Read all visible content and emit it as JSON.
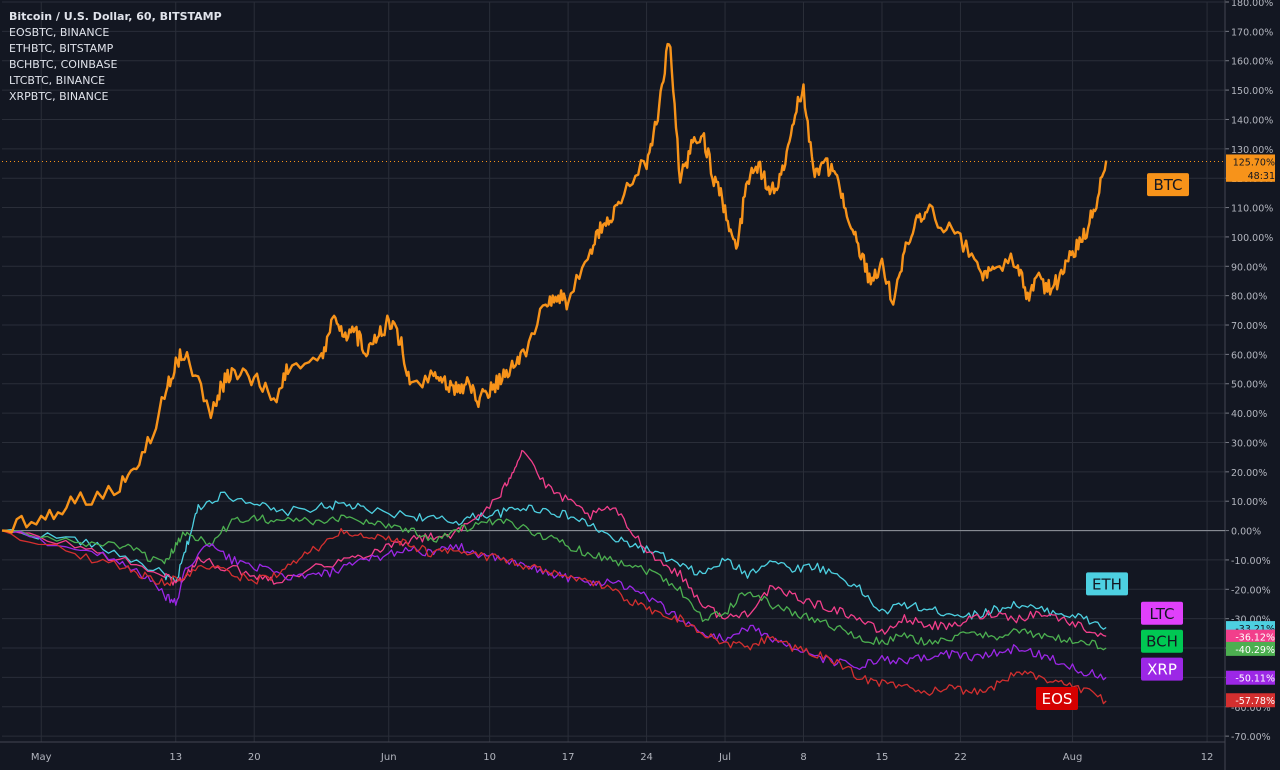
{
  "legend": {
    "main_symbol": "Bitcoin / U.S. Dollar, 60, BITSTAMP",
    "compare": [
      "EOSBTC, BINANCE",
      "ETHBTC, BITSTAMP",
      "BCHBTC, COINBASE",
      "LTCBTC, BINANCE",
      "XRPBTC, BINANCE"
    ]
  },
  "chart_data": {
    "type": "line",
    "y_unit": "%",
    "ylim": [
      -72,
      180
    ],
    "y_ticks": [
      "180.00%",
      "170.00%",
      "160.00%",
      "150.00%",
      "140.00%",
      "130.00%",
      "120.00%",
      "110.00%",
      "100.00%",
      "90.00%",
      "80.00%",
      "70.00%",
      "60.00%",
      "50.00%",
      "40.00%",
      "30.00%",
      "20.00%",
      "10.00%",
      "0.00%",
      "-10.00%",
      "-20.00%",
      "-30.00%",
      "-40.00%",
      "-50.00%",
      "-60.00%",
      "-70.00%"
    ],
    "x_ticks": [
      "May",
      "13",
      "20",
      "Jun",
      "10",
      "17",
      "24",
      "Jul",
      "8",
      "15",
      "22",
      "Aug",
      "12"
    ],
    "x_tick_days": [
      1,
      13,
      20,
      32,
      41,
      48,
      55,
      62,
      69,
      76,
      83,
      93,
      105
    ],
    "x_range_days": [
      -2.5,
      106.6
    ],
    "grid": true,
    "zero_line": true,
    "series": [
      {
        "name": "BTC",
        "color": "#f7931a",
        "last_label": "125.70%",
        "countdown": "48:31",
        "width": 2.4,
        "x": [
          -2.5,
          1,
          4,
          8,
          10,
          12,
          13,
          14,
          16,
          17,
          18,
          20,
          22,
          23,
          26,
          27,
          28,
          29,
          30,
          31,
          32,
          33,
          34,
          36,
          37,
          38,
          39,
          40,
          41,
          42,
          43,
          44,
          46,
          47,
          48,
          50,
          51,
          52,
          53,
          55,
          56,
          57,
          58,
          59,
          60,
          61,
          62,
          63,
          64,
          65,
          66,
          67,
          68,
          69,
          70,
          71,
          72,
          73,
          74,
          75,
          76,
          77,
          78,
          79,
          80,
          82,
          84,
          85,
          86,
          88,
          89,
          90,
          91,
          92,
          93,
          94,
          95,
          96
        ],
        "y": [
          0,
          5,
          10,
          15,
          25,
          45,
          58,
          60,
          40,
          48,
          55,
          52,
          45,
          55,
          58,
          72,
          65,
          68,
          60,
          65,
          72,
          65,
          48,
          52,
          50,
          48,
          50,
          45,
          48,
          52,
          55,
          60,
          78,
          80,
          78,
          95,
          103,
          108,
          115,
          126,
          140,
          168,
          120,
          130,
          135,
          120,
          110,
          95,
          120,
          125,
          115,
          120,
          140,
          150,
          120,
          125,
          120,
          105,
          95,
          85,
          90,
          78,
          95,
          105,
          110,
          102,
          95,
          88,
          90,
          92,
          80,
          85,
          82,
          86,
          95,
          100,
          110,
          126
        ],
        "box": "#f7931a",
        "box_text": "#131722"
      },
      {
        "name": "ETH",
        "color": "#4dd0e1",
        "last_label": "-33.21%",
        "width": 1.3,
        "x": [
          -2.5,
          4,
          8,
          12,
          13,
          14,
          15,
          17,
          20,
          22,
          26,
          28,
          30,
          34,
          36,
          38,
          40,
          42,
          44,
          46,
          48,
          50,
          52,
          54,
          56,
          58,
          60,
          62,
          64,
          66,
          68,
          70,
          72,
          74,
          76,
          78,
          80,
          82,
          84,
          86,
          88,
          90,
          92,
          94,
          96
        ],
        "y": [
          0,
          -3,
          -8,
          -15,
          -18,
          -5,
          8,
          12,
          10,
          6,
          8,
          9,
          7,
          5,
          4,
          3,
          5,
          6,
          8,
          7,
          5,
          2,
          -3,
          -5,
          -8,
          -12,
          -15,
          -10,
          -15,
          -10,
          -13,
          -12,
          -15,
          -20,
          -28,
          -25,
          -27,
          -28,
          -29,
          -27,
          -25,
          -27,
          -28,
          -30,
          -33
        ]
      },
      {
        "name": "LTC",
        "color": "#f23f8b",
        "last_label": "-36.12%",
        "width": 1.3,
        "x": [
          -2.5,
          4,
          8,
          12,
          13,
          14,
          15,
          17,
          20,
          22,
          26,
          28,
          30,
          32,
          34,
          36,
          38,
          40,
          42,
          43,
          44,
          46,
          48,
          50,
          52,
          54,
          56,
          58,
          60,
          62,
          64,
          66,
          68,
          70,
          72,
          74,
          76,
          78,
          80,
          82,
          84,
          86,
          88,
          90,
          92,
          94,
          96
        ],
        "y": [
          0,
          -5,
          -10,
          -15,
          -18,
          -15,
          -10,
          -12,
          -15,
          -17,
          -12,
          -10,
          -8,
          -5,
          -3,
          -2,
          -1,
          5,
          12,
          20,
          28,
          15,
          10,
          5,
          8,
          -2,
          -10,
          -15,
          -25,
          -30,
          -28,
          -20,
          -22,
          -25,
          -27,
          -30,
          -35,
          -30,
          -32,
          -33,
          -30,
          -28,
          -30,
          -28,
          -30,
          -33,
          -36
        ]
      },
      {
        "name": "BCH",
        "color": "#4caf50",
        "last_label": "-40.29%",
        "width": 1.3,
        "x": [
          -2.5,
          4,
          8,
          10,
          12,
          13,
          14,
          16,
          18,
          20,
          22,
          24,
          26,
          28,
          30,
          32,
          34,
          36,
          38,
          40,
          42,
          44,
          46,
          48,
          50,
          52,
          54,
          56,
          58,
          60,
          62,
          64,
          66,
          68,
          70,
          72,
          74,
          76,
          78,
          80,
          82,
          84,
          86,
          88,
          90,
          92,
          94,
          96
        ],
        "y": [
          0,
          -4,
          -5,
          -8,
          -12,
          -5,
          0,
          -5,
          3,
          5,
          3,
          4,
          2,
          5,
          3,
          2,
          0,
          -3,
          0,
          2,
          3,
          1,
          -2,
          -5,
          -8,
          -10,
          -12,
          -15,
          -20,
          -30,
          -28,
          -20,
          -25,
          -28,
          -30,
          -33,
          -37,
          -38,
          -36,
          -38,
          -37,
          -35,
          -36,
          -34,
          -36,
          -37,
          -38,
          -40
        ]
      },
      {
        "name": "XRP",
        "color": "#9c27e6",
        "last_label": "-50.11%",
        "width": 1.3,
        "x": [
          -2.5,
          4,
          8,
          10,
          12,
          13,
          14,
          16,
          18,
          20,
          22,
          24,
          26,
          28,
          30,
          32,
          34,
          36,
          38,
          40,
          42,
          44,
          46,
          48,
          50,
          52,
          54,
          56,
          58,
          60,
          62,
          64,
          66,
          68,
          70,
          72,
          74,
          76,
          78,
          80,
          82,
          84,
          86,
          88,
          90,
          92,
          94,
          96
        ],
        "y": [
          0,
          -6,
          -10,
          -15,
          -22,
          -25,
          -12,
          -5,
          -10,
          -12,
          -15,
          -16,
          -15,
          -13,
          -10,
          -8,
          -6,
          -8,
          -5,
          -8,
          -10,
          -12,
          -14,
          -16,
          -18,
          -17,
          -20,
          -25,
          -30,
          -35,
          -37,
          -33,
          -36,
          -40,
          -43,
          -45,
          -46,
          -44,
          -45,
          -43,
          -42,
          -43,
          -42,
          -40,
          -42,
          -45,
          -48,
          -50
        ]
      },
      {
        "name": "EOS",
        "color": "#d32f2f",
        "last_label": "-57.78%",
        "width": 1.3,
        "x": [
          -2.5,
          4,
          8,
          10,
          12,
          14,
          16,
          18,
          20,
          22,
          24,
          26,
          28,
          30,
          32,
          34,
          36,
          38,
          40,
          42,
          44,
          46,
          48,
          50,
          52,
          54,
          56,
          58,
          60,
          62,
          64,
          66,
          68,
          70,
          72,
          74,
          76,
          78,
          80,
          82,
          84,
          86,
          88,
          90,
          92,
          94,
          96
        ],
        "y": [
          0,
          -8,
          -12,
          -15,
          -18,
          -15,
          -12,
          -15,
          -17,
          -15,
          -10,
          -5,
          0,
          -3,
          -2,
          -5,
          -8,
          -6,
          -8,
          -10,
          -12,
          -14,
          -16,
          -18,
          -20,
          -25,
          -28,
          -30,
          -35,
          -38,
          -40,
          -36,
          -40,
          -42,
          -45,
          -50,
          -52,
          -53,
          -55,
          -54,
          -55,
          -53,
          -48,
          -50,
          -52,
          -54,
          -58
        ]
      }
    ],
    "name_boxes": [
      {
        "name": "BTC",
        "bg": "#f7931a",
        "fg": "#131722",
        "y": 118
      },
      {
        "name": "ETH",
        "bg": "#4dd0e1",
        "fg": "#131722",
        "y": -18
      },
      {
        "name": "LTC",
        "bg": "#e040fb",
        "fg": "#131722",
        "y": -28
      },
      {
        "name": "BCH",
        "bg": "#00c853",
        "fg": "#131722",
        "y": -37.5
      },
      {
        "name": "XRP",
        "bg": "#9c27e6",
        "fg": "#ffffff",
        "y": -47
      },
      {
        "name": "EOS",
        "bg": "#d50000",
        "fg": "#ffffff",
        "y": -57
      }
    ],
    "value_labels": [
      {
        "text": "125.70%",
        "bg": "#f7931a",
        "fg": "#131722",
        "y": 125.7
      },
      {
        "text": "48:31",
        "bg": "#f7931a",
        "fg": "#131722",
        "y": 121.5
      },
      {
        "text": "-33.21%",
        "bg": "#4dd0e1",
        "fg": "#131722",
        "y": -33.21
      },
      {
        "text": "-36.12%",
        "bg": "#f23f8b",
        "fg": "#ffffff",
        "y": -36.12
      },
      {
        "text": "-40.29%",
        "bg": "#4caf50",
        "fg": "#ffffff",
        "y": -40.29
      },
      {
        "text": "-50.11%",
        "bg": "#9c27e6",
        "fg": "#ffffff",
        "y": -50.11
      },
      {
        "text": "-57.78%",
        "bg": "#d32f2f",
        "fg": "#ffffff",
        "y": -57.78
      }
    ]
  }
}
